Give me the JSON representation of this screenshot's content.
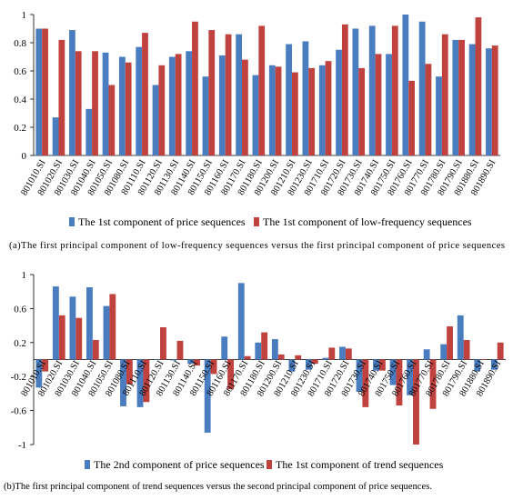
{
  "chart_data": [
    {
      "type": "bar",
      "categories": [
        "801010.SI",
        "801020.SI",
        "801030.SI",
        "801040.SI",
        "801050.SI",
        "801080.SI",
        "801110.SI",
        "801120.SI",
        "801130.SI",
        "801140.SI",
        "801150.SI",
        "801160.SI",
        "801170.SI",
        "801180.SI",
        "801200.SI",
        "801210.SI",
        "801230.SI",
        "801710.SI",
        "801720.SI",
        "801730.SI",
        "801740.SI",
        "801750.SI",
        "801760.SI",
        "801770.SI",
        "801780.SI",
        "801790.SI",
        "801880.SI",
        "801890.SI"
      ],
      "series": [
        {
          "name": "The 1st component of price sequences",
          "color": "#4a7dc0",
          "values": [
            0.9,
            0.27,
            0.89,
            0.33,
            0.73,
            0.7,
            0.77,
            0.5,
            0.7,
            0.74,
            0.56,
            0.71,
            0.86,
            0.57,
            0.64,
            0.79,
            0.81,
            0.64,
            0.75,
            0.9,
            0.92,
            0.72,
            1.0,
            0.95,
            0.56,
            0.82,
            0.79,
            0.76
          ]
        },
        {
          "name": "The 1st component of low-frequency sequences",
          "color": "#c0423f",
          "values": [
            0.9,
            0.82,
            0.74,
            0.74,
            0.5,
            0.66,
            0.87,
            0.64,
            0.72,
            0.95,
            0.89,
            0.86,
            0.68,
            0.92,
            0.63,
            0.59,
            0.62,
            0.67,
            0.93,
            0.62,
            0.72,
            0.92,
            0.53,
            0.65,
            0.86,
            0.82,
            0.98,
            0.78
          ]
        }
      ],
      "ylim": [
        0,
        1
      ],
      "yticks": [
        "0",
        "0.2",
        "0.4",
        "0.6",
        "0.8",
        "1"
      ],
      "caption": "(a)The first principal component of low-frequency sequences versus the first principal component of price sequences",
      "legend": "bottom",
      "grid": false
    },
    {
      "type": "bar",
      "categories": [
        "801010.SI",
        "801020.SI",
        "801030.SI",
        "801040.SI",
        "801050.SI",
        "801080.SI",
        "801110.SI",
        "801120.SI",
        "801130.SI",
        "801140.SI",
        "801150.SI",
        "801160.SI",
        "801170.SI",
        "801180.SI",
        "801200.SI",
        "801210.SI",
        "801230.SI",
        "801710.SI",
        "801720.SI",
        "801730.SI",
        "801740.SI",
        "801750.SI",
        "801760.SI",
        "801770.SI",
        "801780.SI",
        "801790.SI",
        "801880.SI",
        "801890.SI"
      ],
      "series": [
        {
          "name": "The 2nd component of price sequences",
          "color": "#4a7dc0",
          "values": [
            -0.33,
            0.86,
            0.74,
            0.85,
            0.63,
            -0.55,
            -0.56,
            0.0,
            -0.01,
            -0.05,
            -0.86,
            0.27,
            0.9,
            0.2,
            0.24,
            -0.14,
            -0.12,
            0.02,
            0.15,
            -0.38,
            -0.13,
            -0.3,
            -0.42,
            0.12,
            0.18,
            0.52,
            -0.14,
            -0.12
          ]
        },
        {
          "name": "The 1st component of trend sequences",
          "color": "#c0423f",
          "values": [
            -0.14,
            0.52,
            0.49,
            0.23,
            0.77,
            -0.29,
            -0.5,
            0.38,
            0.22,
            -0.07,
            -0.17,
            -0.35,
            0.04,
            0.32,
            0.06,
            0.05,
            -0.05,
            0.14,
            0.13,
            -0.56,
            -0.13,
            -0.54,
            -1.0,
            -0.58,
            0.39,
            0.23,
            0.0,
            0.2
          ]
        }
      ],
      "ylim": [
        -1,
        1
      ],
      "yticks": [
        "1",
        "0.6",
        "0.2",
        "-0.2",
        "-0.6",
        "-1"
      ],
      "caption": "(b)The first principal component of trend sequences versus the second principal component of price sequences.",
      "legend": "bottom",
      "grid": false
    }
  ]
}
